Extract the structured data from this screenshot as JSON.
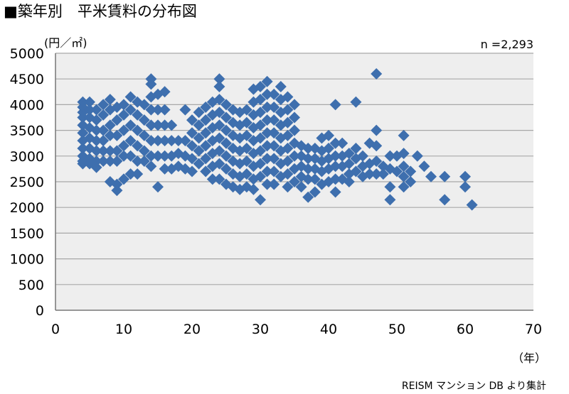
{
  "chart_data": {
    "type": "scatter",
    "title": "■築年別　平米賃料の分布図",
    "y_unit_label": "(円／㎡)",
    "x_unit_label": "（年）",
    "n_label": "n =2,293",
    "source": "REISM マンション DB より集計",
    "xlim": [
      0,
      70
    ],
    "ylim": [
      0,
      5000
    ],
    "xticks": [
      "0",
      "10",
      "20",
      "30",
      "40",
      "50",
      "60",
      "70"
    ],
    "yticks": [
      "0",
      "500",
      "1000",
      "1500",
      "2000",
      "2500",
      "3000",
      "3500",
      "4000",
      "4500",
      "5000"
    ],
    "grid": true,
    "marker_color": "#3e6fae",
    "plot_bg": "#eeeeee",
    "series": [
      {
        "points": [
          [
            4,
            4050
          ],
          [
            4,
            3950
          ],
          [
            4,
            3850
          ],
          [
            4,
            3750
          ],
          [
            4,
            3600
          ],
          [
            4,
            3450
          ],
          [
            4,
            3300
          ],
          [
            4,
            3150
          ],
          [
            4,
            3000
          ],
          [
            4,
            2900
          ],
          [
            4,
            2850
          ],
          [
            5,
            4050
          ],
          [
            5,
            3900
          ],
          [
            5,
            3750
          ],
          [
            5,
            3550
          ],
          [
            5,
            3350
          ],
          [
            5,
            3150
          ],
          [
            5,
            2950
          ],
          [
            5,
            2850
          ],
          [
            6,
            3900
          ],
          [
            6,
            3700
          ],
          [
            6,
            3500
          ],
          [
            6,
            3300
          ],
          [
            6,
            3100
          ],
          [
            6,
            2900
          ],
          [
            6,
            2780
          ],
          [
            7,
            4000
          ],
          [
            7,
            3800
          ],
          [
            7,
            3500
          ],
          [
            7,
            3300
          ],
          [
            7,
            3100
          ],
          [
            7,
            2900
          ],
          [
            8,
            4100
          ],
          [
            8,
            3900
          ],
          [
            8,
            3600
          ],
          [
            8,
            3400
          ],
          [
            8,
            3100
          ],
          [
            8,
            2900
          ],
          [
            8,
            2500
          ],
          [
            9,
            3950
          ],
          [
            9,
            3700
          ],
          [
            9,
            3400
          ],
          [
            9,
            3100
          ],
          [
            9,
            2900
          ],
          [
            9,
            2450
          ],
          [
            9,
            2330
          ],
          [
            10,
            4000
          ],
          [
            10,
            3800
          ],
          [
            10,
            3500
          ],
          [
            10,
            3200
          ],
          [
            10,
            3000
          ],
          [
            10,
            2550
          ],
          [
            11,
            4150
          ],
          [
            11,
            3900
          ],
          [
            11,
            3600
          ],
          [
            11,
            3300
          ],
          [
            11,
            3000
          ],
          [
            11,
            2650
          ],
          [
            12,
            4050
          ],
          [
            12,
            3800
          ],
          [
            12,
            3500
          ],
          [
            12,
            3200
          ],
          [
            12,
            2900
          ],
          [
            12,
            2650
          ],
          [
            13,
            4000
          ],
          [
            13,
            3700
          ],
          [
            13,
            3400
          ],
          [
            13,
            3100
          ],
          [
            13,
            2900
          ],
          [
            14,
            4500
          ],
          [
            14,
            4400
          ],
          [
            14,
            4150
          ],
          [
            14,
            3900
          ],
          [
            14,
            3600
          ],
          [
            14,
            3300
          ],
          [
            14,
            3000
          ],
          [
            14,
            2800
          ],
          [
            15,
            4200
          ],
          [
            15,
            3900
          ],
          [
            15,
            3600
          ],
          [
            15,
            3300
          ],
          [
            15,
            3000
          ],
          [
            15,
            2400
          ],
          [
            16,
            4250
          ],
          [
            16,
            3900
          ],
          [
            16,
            3600
          ],
          [
            16,
            3300
          ],
          [
            16,
            3000
          ],
          [
            16,
            2750
          ],
          [
            17,
            3600
          ],
          [
            17,
            3300
          ],
          [
            17,
            3000
          ],
          [
            17,
            2750
          ],
          [
            18,
            3300
          ],
          [
            18,
            3050
          ],
          [
            18,
            2800
          ],
          [
            19,
            3900
          ],
          [
            19,
            3300
          ],
          [
            19,
            3000
          ],
          [
            19,
            2750
          ],
          [
            20,
            3700
          ],
          [
            20,
            3450
          ],
          [
            20,
            3200
          ],
          [
            20,
            2950
          ],
          [
            20,
            2700
          ],
          [
            21,
            3850
          ],
          [
            21,
            3600
          ],
          [
            21,
            3350
          ],
          [
            21,
            3100
          ],
          [
            21,
            2850
          ],
          [
            22,
            3950
          ],
          [
            22,
            3700
          ],
          [
            22,
            3450
          ],
          [
            22,
            3200
          ],
          [
            22,
            2950
          ],
          [
            22,
            2700
          ],
          [
            23,
            4050
          ],
          [
            23,
            3800
          ],
          [
            23,
            3550
          ],
          [
            23,
            3300
          ],
          [
            23,
            3050
          ],
          [
            23,
            2800
          ],
          [
            23,
            2550
          ],
          [
            24,
            4500
          ],
          [
            24,
            4350
          ],
          [
            24,
            4100
          ],
          [
            24,
            3850
          ],
          [
            24,
            3600
          ],
          [
            24,
            3350
          ],
          [
            24,
            3100
          ],
          [
            24,
            2850
          ],
          [
            24,
            2550
          ],
          [
            25,
            4000
          ],
          [
            25,
            3750
          ],
          [
            25,
            3500
          ],
          [
            25,
            3250
          ],
          [
            25,
            3000
          ],
          [
            25,
            2750
          ],
          [
            25,
            2450
          ],
          [
            26,
            3900
          ],
          [
            26,
            3650
          ],
          [
            26,
            3400
          ],
          [
            26,
            3150
          ],
          [
            26,
            2900
          ],
          [
            26,
            2650
          ],
          [
            26,
            2400
          ],
          [
            27,
            3850
          ],
          [
            27,
            3600
          ],
          [
            27,
            3350
          ],
          [
            27,
            3100
          ],
          [
            27,
            2850
          ],
          [
            27,
            2600
          ],
          [
            27,
            2350
          ],
          [
            28,
            3900
          ],
          [
            28,
            3650
          ],
          [
            28,
            3400
          ],
          [
            28,
            3150
          ],
          [
            28,
            2900
          ],
          [
            28,
            2650
          ],
          [
            28,
            2400
          ],
          [
            29,
            4300
          ],
          [
            29,
            4050
          ],
          [
            29,
            3800
          ],
          [
            29,
            3550
          ],
          [
            29,
            3300
          ],
          [
            29,
            3050
          ],
          [
            29,
            2800
          ],
          [
            29,
            2550
          ],
          [
            29,
            2350
          ],
          [
            30,
            4350
          ],
          [
            30,
            4100
          ],
          [
            30,
            3850
          ],
          [
            30,
            3600
          ],
          [
            30,
            3350
          ],
          [
            30,
            3100
          ],
          [
            30,
            2850
          ],
          [
            30,
            2600
          ],
          [
            30,
            2150
          ],
          [
            31,
            4450
          ],
          [
            31,
            4200
          ],
          [
            31,
            3950
          ],
          [
            31,
            3700
          ],
          [
            31,
            3450
          ],
          [
            31,
            3200
          ],
          [
            31,
            2950
          ],
          [
            31,
            2700
          ],
          [
            31,
            2450
          ],
          [
            32,
            4200
          ],
          [
            32,
            3950
          ],
          [
            32,
            3700
          ],
          [
            32,
            3450
          ],
          [
            32,
            3200
          ],
          [
            32,
            2950
          ],
          [
            32,
            2700
          ],
          [
            32,
            2450
          ],
          [
            33,
            4350
          ],
          [
            33,
            4100
          ],
          [
            33,
            3850
          ],
          [
            33,
            3600
          ],
          [
            33,
            3350
          ],
          [
            33,
            3100
          ],
          [
            33,
            2850
          ],
          [
            33,
            2600
          ],
          [
            34,
            4150
          ],
          [
            34,
            3900
          ],
          [
            34,
            3650
          ],
          [
            34,
            3400
          ],
          [
            34,
            3150
          ],
          [
            34,
            2900
          ],
          [
            34,
            2650
          ],
          [
            34,
            2400
          ],
          [
            35,
            4000
          ],
          [
            35,
            3750
          ],
          [
            35,
            3500
          ],
          [
            35,
            3250
          ],
          [
            35,
            3000
          ],
          [
            35,
            2750
          ],
          [
            35,
            2500
          ],
          [
            36,
            3200
          ],
          [
            36,
            3000
          ],
          [
            36,
            2800
          ],
          [
            36,
            2600
          ],
          [
            36,
            2400
          ],
          [
            37,
            3150
          ],
          [
            37,
            2950
          ],
          [
            37,
            2750
          ],
          [
            37,
            2550
          ],
          [
            37,
            2200
          ],
          [
            38,
            3150
          ],
          [
            38,
            2950
          ],
          [
            38,
            2750
          ],
          [
            38,
            2550
          ],
          [
            38,
            2300
          ],
          [
            39,
            3350
          ],
          [
            39,
            3100
          ],
          [
            39,
            2900
          ],
          [
            39,
            2700
          ],
          [
            39,
            2450
          ],
          [
            40,
            3400
          ],
          [
            40,
            3150
          ],
          [
            40,
            2950
          ],
          [
            40,
            2750
          ],
          [
            40,
            2500
          ],
          [
            41,
            4000
          ],
          [
            41,
            3250
          ],
          [
            41,
            3000
          ],
          [
            41,
            2800
          ],
          [
            41,
            2550
          ],
          [
            41,
            2300
          ],
          [
            42,
            3250
          ],
          [
            42,
            3000
          ],
          [
            42,
            2800
          ],
          [
            42,
            2550
          ],
          [
            43,
            3050
          ],
          [
            43,
            2850
          ],
          [
            43,
            2650
          ],
          [
            43,
            2500
          ],
          [
            44,
            4050
          ],
          [
            44,
            3150
          ],
          [
            44,
            2950
          ],
          [
            44,
            2700
          ],
          [
            45,
            3000
          ],
          [
            45,
            2800
          ],
          [
            45,
            2600
          ],
          [
            46,
            3250
          ],
          [
            46,
            2850
          ],
          [
            46,
            2650
          ],
          [
            47,
            4600
          ],
          [
            47,
            3500
          ],
          [
            47,
            3200
          ],
          [
            47,
            2900
          ],
          [
            47,
            2650
          ],
          [
            48,
            2800
          ],
          [
            48,
            2650
          ],
          [
            49,
            3000
          ],
          [
            49,
            2750
          ],
          [
            49,
            2400
          ],
          [
            49,
            2150
          ],
          [
            50,
            3000
          ],
          [
            50,
            2700
          ],
          [
            51,
            3400
          ],
          [
            51,
            3050
          ],
          [
            51,
            2800
          ],
          [
            51,
            2600
          ],
          [
            51,
            2400
          ],
          [
            52,
            2700
          ],
          [
            52,
            2500
          ],
          [
            53,
            3000
          ],
          [
            54,
            2800
          ],
          [
            55,
            2600
          ],
          [
            57,
            2600
          ],
          [
            57,
            2150
          ],
          [
            60,
            2600
          ],
          [
            60,
            2400
          ],
          [
            61,
            2050
          ]
        ]
      }
    ]
  }
}
